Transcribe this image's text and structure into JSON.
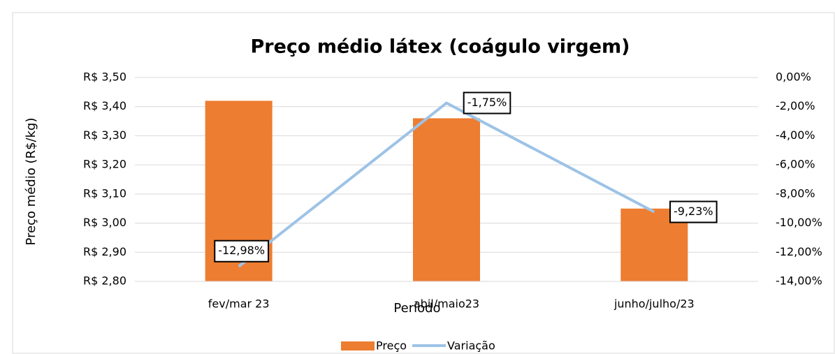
{
  "chart_data": {
    "type": "bar",
    "title": "Preço médio látex (coágulo virgem)",
    "x_label": "Período",
    "y_label": "Preço médio (R$/kg)",
    "categories": [
      "fev/mar 23",
      "abil/maio23",
      "junho/julho/23"
    ],
    "series": [
      {
        "name": "Preço",
        "type": "bar",
        "color": "#ed7d31",
        "values": [
          3.42,
          3.36,
          3.05
        ]
      },
      {
        "name": "Variação",
        "type": "line",
        "axis": "y2",
        "color": "#9dc3e6",
        "values": [
          -12.98,
          -1.75,
          -9.23
        ],
        "value_labels": [
          "-12,98%",
          "-1,75%",
          "-9,23%"
        ]
      }
    ],
    "ylim": [
      2.8,
      3.5
    ],
    "yticks": [
      {
        "value": 2.8,
        "label": "R$ 2,80"
      },
      {
        "value": 2.9,
        "label": "R$ 2,90"
      },
      {
        "value": 3.0,
        "label": "R$ 3,00"
      },
      {
        "value": 3.1,
        "label": "R$ 3,10"
      },
      {
        "value": 3.2,
        "label": "R$ 3,20"
      },
      {
        "value": 3.3,
        "label": "R$ 3,30"
      },
      {
        "value": 3.4,
        "label": "R$ 3,40"
      },
      {
        "value": 3.5,
        "label": "R$ 3,50"
      }
    ],
    "y2lim": [
      -14,
      0
    ],
    "y2ticks": [
      {
        "value": -14,
        "label": "-14,00%"
      },
      {
        "value": -12,
        "label": "-12,00%"
      },
      {
        "value": -10,
        "label": "-10,00%"
      },
      {
        "value": -8,
        "label": "-8,00%"
      },
      {
        "value": -6,
        "label": "-6,00%"
      },
      {
        "value": -4,
        "label": "-4,00%"
      },
      {
        "value": -2,
        "label": "-2,00%"
      },
      {
        "value": 0,
        "label": "0,00%"
      }
    ],
    "grid": true,
    "legend": "bottom"
  }
}
